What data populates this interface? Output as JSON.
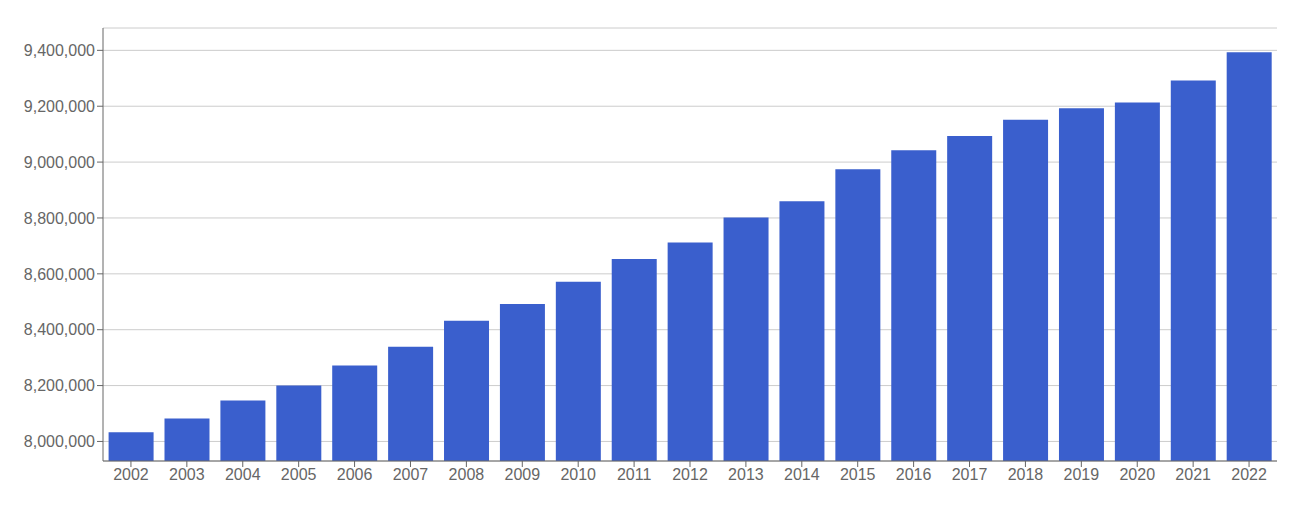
{
  "chart_data": {
    "type": "bar",
    "categories": [
      "2002",
      "2003",
      "2004",
      "2005",
      "2006",
      "2007",
      "2008",
      "2009",
      "2010",
      "2011",
      "2012",
      "2013",
      "2014",
      "2015",
      "2016",
      "2017",
      "2018",
      "2019",
      "2020",
      "2021",
      "2022"
    ],
    "values": [
      8033000,
      8082000,
      8147000,
      8200000,
      8272000,
      8339000,
      8432000,
      8492000,
      8572000,
      8653000,
      8712000,
      8802000,
      8860000,
      8974000,
      9042000,
      9093000,
      9152000,
      9193000,
      9213000,
      9292000,
      9393000
    ],
    "color": "#3a5fcd",
    "ylim": [
      7930000,
      9480000
    ],
    "yticks": [
      {
        "value": 8000000,
        "label": "8,000,000"
      },
      {
        "value": 8200000,
        "label": "8,200,000"
      },
      {
        "value": 8400000,
        "label": "8,400,000"
      },
      {
        "value": 8600000,
        "label": "8,600,000"
      },
      {
        "value": 8800000,
        "label": "8,800,000"
      },
      {
        "value": 9000000,
        "label": "9,000,000"
      },
      {
        "value": 9200000,
        "label": "9,200,000"
      },
      {
        "value": 9400000,
        "label": "9,400,000"
      }
    ],
    "grid": true
  }
}
